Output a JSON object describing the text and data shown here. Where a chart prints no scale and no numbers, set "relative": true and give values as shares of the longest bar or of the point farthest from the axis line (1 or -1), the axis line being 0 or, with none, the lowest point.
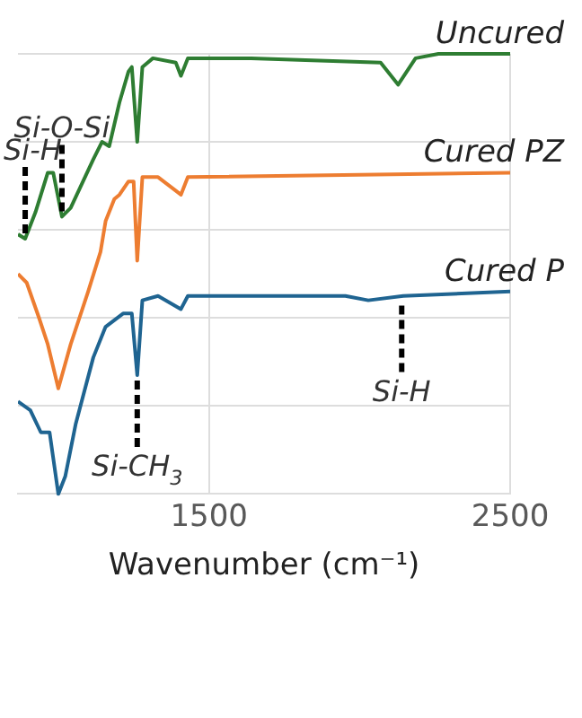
{
  "chart_data": {
    "type": "line",
    "relative": true,
    "xlabel": "Wavenumber (cm⁻¹)",
    "xlim": [
      866,
      2500
    ],
    "xticks": [
      1500,
      2500
    ],
    "grid": true,
    "legend": false,
    "marker": "none",
    "line_style": "solid",
    "series": [
      {
        "name": "Uncured",
        "color": "#2e7d32",
        "x": [
          866,
          890,
          924,
          965,
          983,
          1012,
          1041,
          1116,
          1145,
          1169,
          1203,
          1233,
          1244,
          1262,
          1279,
          1314,
          1390,
          1407,
          1430,
          1640,
          2070,
          2128,
          2186,
          2262,
          2500
        ],
        "values": [
          0.59,
          0.58,
          0.64,
          0.73,
          0.73,
          0.63,
          0.65,
          0.76,
          0.8,
          0.79,
          0.89,
          0.96,
          0.97,
          0.8,
          0.97,
          0.99,
          0.98,
          0.95,
          0.99,
          0.99,
          0.98,
          0.93,
          0.99,
          1.0,
          1.0
        ]
      },
      {
        "name": "Cured PZ",
        "color": "#ed7d31",
        "x": [
          866,
          895,
          936,
          965,
          1000,
          1041,
          1099,
          1140,
          1157,
          1186,
          1203,
          1233,
          1250,
          1262,
          1279,
          1331,
          1407,
          1430,
          2500
        ],
        "values": [
          0.5,
          0.48,
          0.4,
          0.34,
          0.24,
          0.34,
          0.46,
          0.55,
          0.62,
          0.67,
          0.68,
          0.71,
          0.71,
          0.53,
          0.72,
          0.72,
          0.68,
          0.72,
          0.73
        ]
      },
      {
        "name": "Cured P",
        "color": "#1f6491",
        "x": [
          866,
          907,
          942,
          971,
          1000,
          1023,
          1058,
          1116,
          1157,
          1215,
          1244,
          1262,
          1279,
          1331,
          1407,
          1430,
          1953,
          2029,
          2145,
          2500
        ],
        "values": [
          0.21,
          0.19,
          0.14,
          0.14,
          0,
          0.04,
          0.16,
          0.31,
          0.38,
          0.41,
          0.41,
          0.27,
          0.44,
          0.45,
          0.42,
          0.45,
          0.45,
          0.44,
          0.45,
          0.46
        ]
      }
    ],
    "annotations": [
      {
        "text": "Si-O-Si",
        "x": 1012,
        "y": 0.63
      },
      {
        "text": "Si-H",
        "x": 890,
        "y": 0.58
      },
      {
        "text": "Si-CH$_{3}$",
        "x": 1262,
        "y": 0.27
      },
      {
        "text": "Si-H",
        "x": 2140,
        "y": 0.44
      }
    ]
  }
}
